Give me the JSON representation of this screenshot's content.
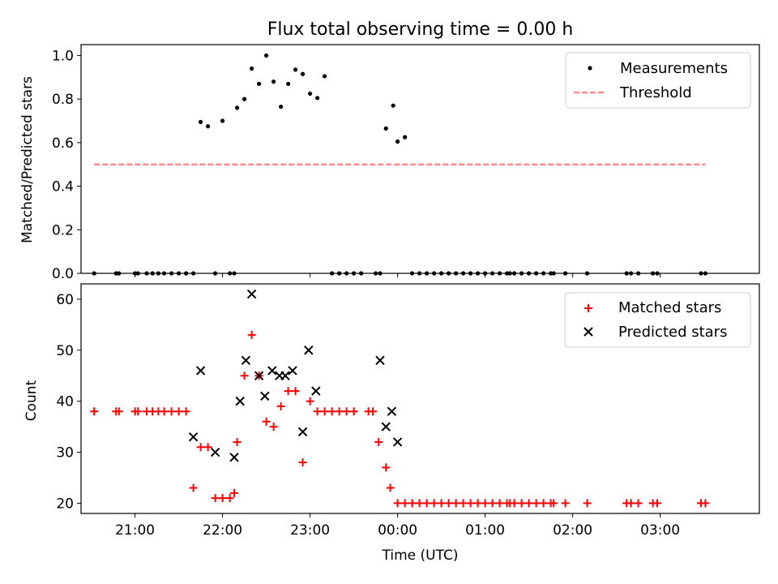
{
  "chart_data": [
    {
      "type": "scatter",
      "title": "Flux total observing time = 0.00 h",
      "xlabel": "",
      "ylabel": "Matched/Predicted stars",
      "ylim": [
        0.0,
        1.05
      ],
      "xlim": [
        "20:23",
        "04:08"
      ],
      "x_ticks": [
        "21:00",
        "22:00",
        "23:00",
        "00:00",
        "01:00",
        "02:00",
        "03:00"
      ],
      "y_ticks": [
        "0.0",
        "0.2",
        "0.4",
        "0.6",
        "0.8",
        "1.0"
      ],
      "grid": false,
      "legend": {
        "placement": "top-right",
        "entries": [
          "Measurements",
          "Threshold"
        ]
      },
      "colors": {
        "measurements": "#000000",
        "threshold": "#ff8080"
      },
      "series": [
        {
          "name": "Measurements",
          "marker": "dot",
          "points": [
            [
              "20:32",
              0.0
            ],
            [
              "20:47",
              0.0
            ],
            [
              "20:49",
              0.0
            ],
            [
              "21:00",
              0.0
            ],
            [
              "21:02",
              0.0
            ],
            [
              "21:08",
              0.0
            ],
            [
              "21:12",
              0.0
            ],
            [
              "21:16",
              0.0
            ],
            [
              "21:20",
              0.0
            ],
            [
              "21:25",
              0.0
            ],
            [
              "21:30",
              0.0
            ],
            [
              "21:35",
              0.0
            ],
            [
              "21:40",
              0.0
            ],
            [
              "21:45",
              0.695
            ],
            [
              "21:50",
              0.675
            ],
            [
              "21:55",
              0.0
            ],
            [
              "22:00",
              0.7
            ],
            [
              "22:05",
              0.0
            ],
            [
              "22:08",
              0.0
            ],
            [
              "22:10",
              0.76
            ],
            [
              "22:15",
              0.8
            ],
            [
              "22:20",
              0.94
            ],
            [
              "22:25",
              0.87
            ],
            [
              "22:30",
              1.0
            ],
            [
              "22:35",
              0.88
            ],
            [
              "22:40",
              0.765
            ],
            [
              "22:45",
              0.87
            ],
            [
              "22:50",
              0.935
            ],
            [
              "22:55",
              0.915
            ],
            [
              "23:00",
              0.825
            ],
            [
              "23:05",
              0.805
            ],
            [
              "23:10",
              0.905
            ],
            [
              "23:15",
              0.0
            ],
            [
              "23:20",
              0.0
            ],
            [
              "23:25",
              0.0
            ],
            [
              "23:30",
              0.0
            ],
            [
              "23:35",
              0.0
            ],
            [
              "23:45",
              0.0
            ],
            [
              "23:48",
              0.0
            ],
            [
              "23:52",
              0.665
            ],
            [
              "23:57",
              0.77
            ],
            [
              "00:00",
              0.605
            ],
            [
              "00:05",
              0.625
            ],
            [
              "00:10",
              0.0
            ],
            [
              "00:15",
              0.0
            ],
            [
              "00:20",
              0.0
            ],
            [
              "00:25",
              0.0
            ],
            [
              "00:30",
              0.0
            ],
            [
              "00:35",
              0.0
            ],
            [
              "00:40",
              0.0
            ],
            [
              "00:45",
              0.0
            ],
            [
              "00:50",
              0.0
            ],
            [
              "00:55",
              0.0
            ],
            [
              "01:00",
              0.0
            ],
            [
              "01:05",
              0.0
            ],
            [
              "01:10",
              0.0
            ],
            [
              "01:15",
              0.0
            ],
            [
              "01:17",
              0.0
            ],
            [
              "01:20",
              0.0
            ],
            [
              "01:25",
              0.0
            ],
            [
              "01:30",
              0.0
            ],
            [
              "01:35",
              0.0
            ],
            [
              "01:40",
              0.0
            ],
            [
              "01:45",
              0.0
            ],
            [
              "01:47",
              0.0
            ],
            [
              "01:55",
              0.0
            ],
            [
              "02:10",
              0.0
            ],
            [
              "02:37",
              0.0
            ],
            [
              "02:40",
              0.0
            ],
            [
              "02:45",
              0.0
            ],
            [
              "02:55",
              0.0
            ],
            [
              "02:58",
              0.0
            ],
            [
              "03:28",
              0.0
            ],
            [
              "03:31",
              0.0
            ]
          ]
        },
        {
          "name": "Threshold",
          "style": "dashed-line",
          "points": [
            [
              "20:32",
              0.5
            ],
            [
              "03:31",
              0.5
            ]
          ]
        }
      ]
    },
    {
      "type": "scatter",
      "title": "",
      "xlabel": "Time (UTC)",
      "ylabel": "Count",
      "ylim": [
        18,
        63
      ],
      "xlim": [
        "20:23",
        "04:08"
      ],
      "x_ticks": [
        "21:00",
        "22:00",
        "23:00",
        "00:00",
        "01:00",
        "02:00",
        "03:00"
      ],
      "y_ticks": [
        "20",
        "30",
        "40",
        "50",
        "60"
      ],
      "grid": false,
      "legend": {
        "placement": "top-right",
        "entries": [
          "Matched stars",
          "Predicted stars"
        ]
      },
      "colors": {
        "matched": "#ff0000",
        "predicted": "#000000"
      },
      "series": [
        {
          "name": "Matched stars",
          "marker": "plus",
          "points": [
            [
              "20:32",
              38
            ],
            [
              "20:47",
              38
            ],
            [
              "20:49",
              38
            ],
            [
              "21:00",
              38
            ],
            [
              "21:02",
              38
            ],
            [
              "21:08",
              38
            ],
            [
              "21:12",
              38
            ],
            [
              "21:16",
              38
            ],
            [
              "21:20",
              38
            ],
            [
              "21:25",
              38
            ],
            [
              "21:30",
              38
            ],
            [
              "21:35",
              38
            ],
            [
              "21:40",
              23
            ],
            [
              "21:45",
              31
            ],
            [
              "21:50",
              31
            ],
            [
              "21:55",
              21
            ],
            [
              "22:00",
              21
            ],
            [
              "22:05",
              21
            ],
            [
              "22:08",
              22
            ],
            [
              "22:10",
              32
            ],
            [
              "22:15",
              45
            ],
            [
              "22:20",
              53
            ],
            [
              "22:25",
              45
            ],
            [
              "22:30",
              36
            ],
            [
              "22:35",
              35
            ],
            [
              "22:40",
              39
            ],
            [
              "22:45",
              42
            ],
            [
              "22:50",
              42
            ],
            [
              "22:55",
              28
            ],
            [
              "23:00",
              40
            ],
            [
              "23:05",
              38
            ],
            [
              "23:10",
              38
            ],
            [
              "23:15",
              38
            ],
            [
              "23:20",
              38
            ],
            [
              "23:25",
              38
            ],
            [
              "23:30",
              38
            ],
            [
              "23:40",
              38
            ],
            [
              "23:43",
              38
            ],
            [
              "23:47",
              32
            ],
            [
              "23:52",
              27
            ],
            [
              "23:55",
              23
            ],
            [
              "00:00",
              20
            ],
            [
              "00:05",
              20
            ],
            [
              "00:10",
              20
            ],
            [
              "00:15",
              20
            ],
            [
              "00:20",
              20
            ],
            [
              "00:25",
              20
            ],
            [
              "00:30",
              20
            ],
            [
              "00:35",
              20
            ],
            [
              "00:40",
              20
            ],
            [
              "00:45",
              20
            ],
            [
              "00:50",
              20
            ],
            [
              "00:55",
              20
            ],
            [
              "01:00",
              20
            ],
            [
              "01:05",
              20
            ],
            [
              "01:10",
              20
            ],
            [
              "01:15",
              20
            ],
            [
              "01:17",
              20
            ],
            [
              "01:20",
              20
            ],
            [
              "01:25",
              20
            ],
            [
              "01:30",
              20
            ],
            [
              "01:35",
              20
            ],
            [
              "01:40",
              20
            ],
            [
              "01:45",
              20
            ],
            [
              "01:47",
              20
            ],
            [
              "01:55",
              20
            ],
            [
              "02:10",
              20
            ],
            [
              "02:37",
              20
            ],
            [
              "02:40",
              20
            ],
            [
              "02:45",
              20
            ],
            [
              "02:55",
              20
            ],
            [
              "02:58",
              20
            ],
            [
              "03:28",
              20
            ],
            [
              "03:31",
              20
            ]
          ]
        },
        {
          "name": "Predicted stars",
          "marker": "x",
          "points": [
            [
              "21:40",
              33
            ],
            [
              "21:45",
              46
            ],
            [
              "21:55",
              30
            ],
            [
              "22:08",
              29
            ],
            [
              "22:12",
              40
            ],
            [
              "22:16",
              48
            ],
            [
              "22:20",
              61
            ],
            [
              "22:25",
              45
            ],
            [
              "22:29",
              41
            ],
            [
              "22:34",
              46
            ],
            [
              "22:39",
              45
            ],
            [
              "22:43",
              45
            ],
            [
              "22:48",
              46
            ],
            [
              "22:55",
              34
            ],
            [
              "22:59",
              50
            ],
            [
              "23:04",
              42
            ],
            [
              "23:48",
              48
            ],
            [
              "23:52",
              35
            ],
            [
              "23:56",
              38
            ],
            [
              "00:00",
              32
            ]
          ]
        }
      ]
    }
  ]
}
